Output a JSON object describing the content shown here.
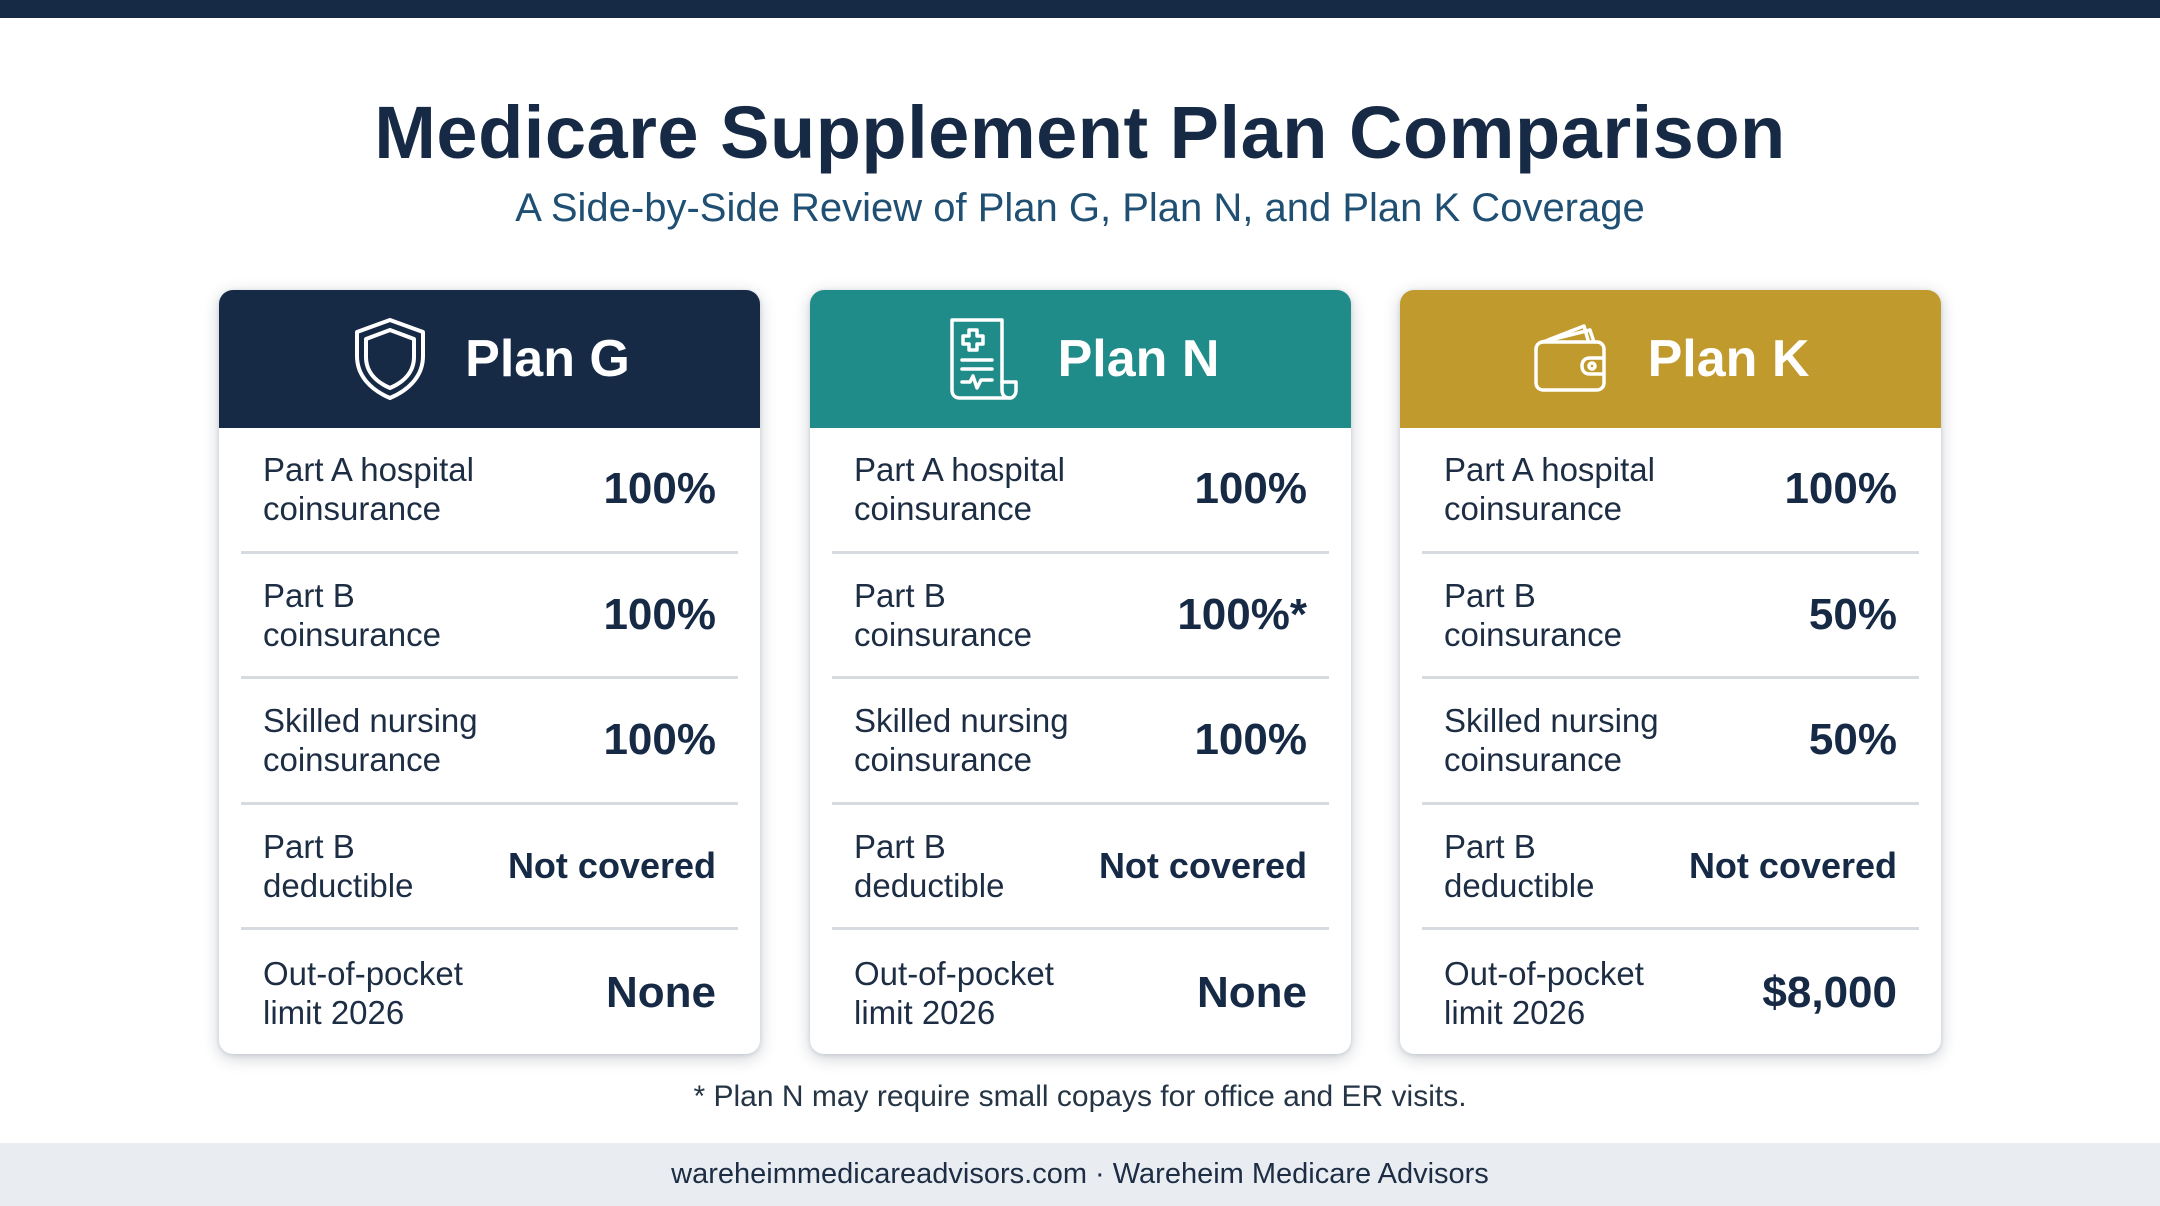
{
  "header": {
    "title": "Medicare Supplement Plan Comparison",
    "subtitle": "A Side-by-Side Review of Plan G, Plan N, and Plan K Coverage"
  },
  "colors": {
    "navy": "#172a45",
    "teal": "#1f8c8a",
    "gold": "#c09a2c"
  },
  "plans": [
    {
      "name": "Plan G",
      "icon": "shield-icon",
      "rows": [
        {
          "label": "Part A hospital coinsurance",
          "value": "100%"
        },
        {
          "label": "Part B coinsurance",
          "value": "100%"
        },
        {
          "label": "Skilled nursing coinsurance",
          "value": "100%"
        },
        {
          "label": "Part B deductible",
          "value": "Not covered"
        },
        {
          "label": "Out-of-pocket limit 2026",
          "value": "None"
        }
      ]
    },
    {
      "name": "Plan N",
      "icon": "medical-document-icon",
      "rows": [
        {
          "label": "Part A hospital coinsurance",
          "value": "100%"
        },
        {
          "label": "Part B coinsurance",
          "value": "100%*"
        },
        {
          "label": "Skilled nursing coinsurance",
          "value": "100%"
        },
        {
          "label": "Part B deductible",
          "value": "Not covered"
        },
        {
          "label": "Out-of-pocket limit 2026",
          "value": "None"
        }
      ]
    },
    {
      "name": "Plan K",
      "icon": "wallet-icon",
      "rows": [
        {
          "label": "Part A hospital coinsurance",
          "value": "100%"
        },
        {
          "label": "Part B coinsurance",
          "value": "50%"
        },
        {
          "label": "Skilled nursing coinsurance",
          "value": "50%"
        },
        {
          "label": "Part B deductible",
          "value": "Not covered"
        },
        {
          "label": "Out-of-pocket limit 2026",
          "value": "$8,000"
        }
      ]
    }
  ],
  "footnote": "* Plan N may require small copays for office and ER visits.",
  "footer": "wareheimmedicareadvisors.com · Wareheim Medicare Advisors"
}
